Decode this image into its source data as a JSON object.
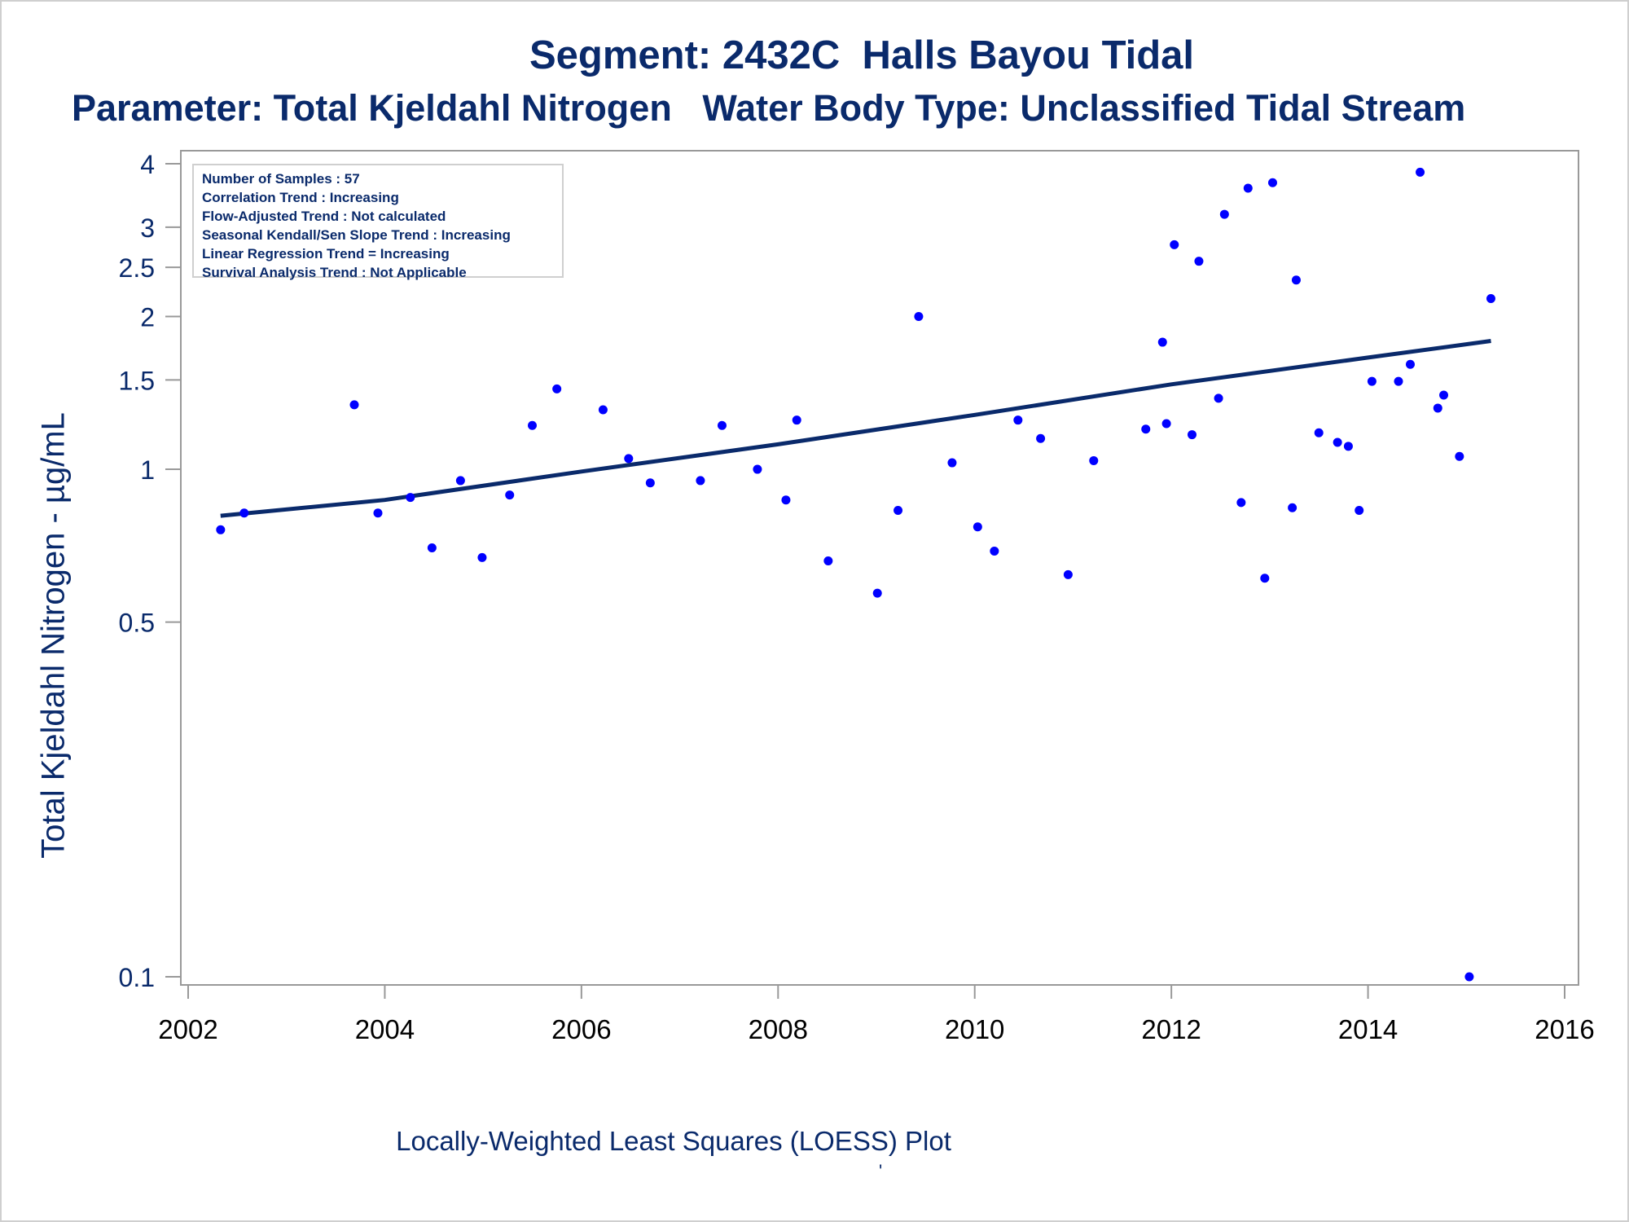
{
  "chart_data": {
    "type": "scatter",
    "title": "Segment: 2432C  Halls Bayou Tidal",
    "subtitle": "Parameter: Total Kjeldahl Nitrogen   Water Body Type: Unclassified Tidal Stream",
    "xlabel": "Locally-Weighted Least Squares (LOESS) Plot",
    "ylabel": "Total Kjeldahl Nitrogen -  µg/mL",
    "footnote": "'",
    "xlim": [
      2002,
      2016
    ],
    "ylim": [
      0.1,
      4
    ],
    "yscale": "log",
    "x_ticks": [
      "2002",
      "2004",
      "2006",
      "2008",
      "2010",
      "2012",
      "2014",
      "2016"
    ],
    "y_ticks": [
      {
        "value": 0.1,
        "label": "0.1"
      },
      {
        "value": 0.5,
        "label": "0.5"
      },
      {
        "value": 1,
        "label": "1"
      },
      {
        "value": 1.5,
        "label": "1.5"
      },
      {
        "value": 2,
        "label": "2"
      },
      {
        "value": 2.5,
        "label": "2.5"
      },
      {
        "value": 3,
        "label": "3"
      },
      {
        "value": 4,
        "label": "4"
      }
    ],
    "legend_placement": "top-left",
    "annotations": [
      "Number of Samples : 57",
      "Correlation Trend : Increasing",
      "Flow-Adjusted Trend : Not calculated",
      "Seasonal Kendall/Sen Slope Trend : Increasing",
      "Linear Regression Trend = Increasing",
      "Survival Analysis Trend : Not Applicable"
    ],
    "colors": {
      "points": "#0000ff",
      "trend_line": "#0a2a6b",
      "axis": "#999999",
      "text": "#0a2a6b"
    },
    "series": [
      {
        "name": "Samples",
        "type": "scatter",
        "points": [
          {
            "x": 2002.33,
            "y": 0.76
          },
          {
            "x": 2002.57,
            "y": 0.82
          },
          {
            "x": 2003.69,
            "y": 1.34
          },
          {
            "x": 2003.93,
            "y": 0.82
          },
          {
            "x": 2004.26,
            "y": 0.88
          },
          {
            "x": 2004.48,
            "y": 0.7
          },
          {
            "x": 2004.77,
            "y": 0.95
          },
          {
            "x": 2004.99,
            "y": 0.67
          },
          {
            "x": 2005.27,
            "y": 0.89
          },
          {
            "x": 2005.5,
            "y": 1.22
          },
          {
            "x": 2005.75,
            "y": 1.44
          },
          {
            "x": 2006.22,
            "y": 1.31
          },
          {
            "x": 2006.48,
            "y": 1.05
          },
          {
            "x": 2006.7,
            "y": 0.94
          },
          {
            "x": 2007.21,
            "y": 0.95
          },
          {
            "x": 2007.43,
            "y": 1.22
          },
          {
            "x": 2007.79,
            "y": 1.0
          },
          {
            "x": 2008.08,
            "y": 0.87
          },
          {
            "x": 2008.19,
            "y": 1.25
          },
          {
            "x": 2008.51,
            "y": 0.66
          },
          {
            "x": 2009.01,
            "y": 0.57
          },
          {
            "x": 2009.22,
            "y": 0.83
          },
          {
            "x": 2009.43,
            "y": 2.0
          },
          {
            "x": 2009.77,
            "y": 1.03
          },
          {
            "x": 2010.03,
            "y": 0.77
          },
          {
            "x": 2010.2,
            "y": 0.69
          },
          {
            "x": 2010.44,
            "y": 1.25
          },
          {
            "x": 2010.67,
            "y": 1.15
          },
          {
            "x": 2010.95,
            "y": 0.62
          },
          {
            "x": 2011.21,
            "y": 1.04
          },
          {
            "x": 2011.74,
            "y": 1.2
          },
          {
            "x": 2011.91,
            "y": 1.78
          },
          {
            "x": 2011.95,
            "y": 1.23
          },
          {
            "x": 2012.03,
            "y": 2.77
          },
          {
            "x": 2012.21,
            "y": 1.17
          },
          {
            "x": 2012.28,
            "y": 2.57
          },
          {
            "x": 2012.48,
            "y": 1.38
          },
          {
            "x": 2012.54,
            "y": 3.18
          },
          {
            "x": 2012.71,
            "y": 0.86
          },
          {
            "x": 2012.78,
            "y": 3.58
          },
          {
            "x": 2012.95,
            "y": 0.61
          },
          {
            "x": 2013.03,
            "y": 3.67
          },
          {
            "x": 2013.23,
            "y": 0.84
          },
          {
            "x": 2013.27,
            "y": 2.36
          },
          {
            "x": 2013.5,
            "y": 1.18
          },
          {
            "x": 2013.69,
            "y": 1.13
          },
          {
            "x": 2013.8,
            "y": 1.11
          },
          {
            "x": 2013.91,
            "y": 0.83
          },
          {
            "x": 2014.04,
            "y": 1.49
          },
          {
            "x": 2014.31,
            "y": 1.49
          },
          {
            "x": 2014.43,
            "y": 1.61
          },
          {
            "x": 2014.53,
            "y": 3.85
          },
          {
            "x": 2014.71,
            "y": 1.32
          },
          {
            "x": 2014.77,
            "y": 1.4
          },
          {
            "x": 2014.93,
            "y": 1.06
          },
          {
            "x": 2015.03,
            "y": 0.1
          },
          {
            "x": 2015.25,
            "y": 2.17
          }
        ]
      },
      {
        "name": "LOESS trend",
        "type": "line",
        "points": [
          {
            "x": 2002.33,
            "y": 0.81
          },
          {
            "x": 2004.0,
            "y": 0.87
          },
          {
            "x": 2006.0,
            "y": 0.99
          },
          {
            "x": 2008.0,
            "y": 1.12
          },
          {
            "x": 2010.0,
            "y": 1.28
          },
          {
            "x": 2012.0,
            "y": 1.47
          },
          {
            "x": 2014.0,
            "y": 1.66
          },
          {
            "x": 2015.25,
            "y": 1.79
          }
        ]
      }
    ]
  }
}
